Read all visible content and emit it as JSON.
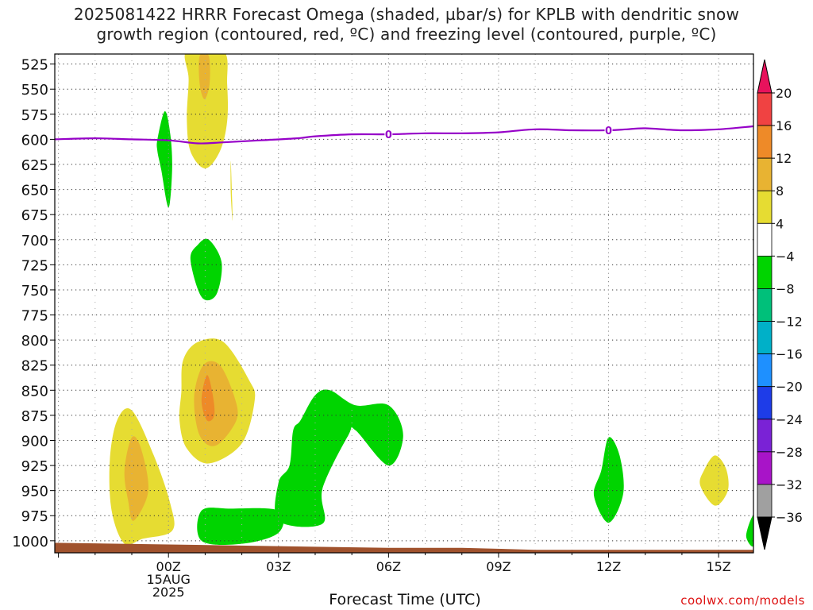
{
  "title_line1": "2025081422 HRRR Forecast Omega (shaded, µbar/s) for KPLB with dendritic snow",
  "title_line2": "growth region (contoured, red, ºC) and freezing level (contoured, purple, ºC)",
  "credit": "coolwx.com/models",
  "chart_data": {
    "type": "contour",
    "title": "2025081422 HRRR Forecast Omega (shaded, µbar/s) for KPLB with dendritic snow growth region (contoured, red, ºC) and freezing level (contoured, purple, ºC)",
    "xlabel": "Forecast Time (UTC)",
    "ylabel": "",
    "x_range_hours": [
      -3.1,
      15.95
    ],
    "y_range_mb": [
      515,
      1012
    ],
    "y_ticks": [
      525,
      550,
      575,
      600,
      625,
      650,
      675,
      700,
      725,
      750,
      775,
      800,
      825,
      850,
      875,
      900,
      925,
      950,
      975,
      1000
    ],
    "x_ticks": [
      {
        "h": 0,
        "label": "00Z",
        "sub1": "15AUG",
        "sub2": "2025"
      },
      {
        "h": 3,
        "label": "03Z"
      },
      {
        "h": 6,
        "label": "06Z"
      },
      {
        "h": 9,
        "label": "09Z"
      },
      {
        "h": 12,
        "label": "12Z"
      },
      {
        "h": 15,
        "label": "15Z"
      }
    ],
    "grid": true,
    "colorbar": {
      "levels": [
        "20",
        "16",
        "12",
        "8",
        "4",
        "−4",
        "−8",
        "−12",
        "−16",
        "−20",
        "−24",
        "−28",
        "−32",
        "−36"
      ],
      "colors": [
        "#e8125c",
        "#f04242",
        "#ee8a28",
        "#e8b332",
        "#e6dc32",
        "#ffffff",
        "#00d400",
        "#00c07a",
        "#00b0c8",
        "#1e90ff",
        "#1e3ce8",
        "#7a22d6",
        "#a814c8",
        "#a0a0a0",
        "#000000"
      ]
    },
    "freezing_level": {
      "label": "0",
      "color": "#9600c8",
      "points": [
        [
          -3.1,
          600
        ],
        [
          -2.0,
          599
        ],
        [
          -1.0,
          600
        ],
        [
          0.0,
          601
        ],
        [
          0.8,
          604
        ],
        [
          1.5,
          603
        ],
        [
          2.5,
          601
        ],
        [
          3.5,
          599
        ],
        [
          4.0,
          597
        ],
        [
          5.0,
          595
        ],
        [
          6.0,
          595
        ],
        [
          7.0,
          594
        ],
        [
          8.0,
          594
        ],
        [
          9.0,
          593
        ],
        [
          10.0,
          590
        ],
        [
          11.0,
          591
        ],
        [
          12.0,
          591
        ],
        [
          12.5,
          590
        ],
        [
          13.0,
          589
        ],
        [
          14.0,
          591
        ],
        [
          15.0,
          590
        ],
        [
          15.95,
          587
        ]
      ]
    },
    "omega_regions": [
      {
        "level": "4",
        "color": "#e6dc32",
        "points": [
          [
            0.5,
            512
          ],
          [
            0.55,
            540
          ],
          [
            0.5,
            580
          ],
          [
            0.6,
            612
          ],
          [
            1.0,
            629
          ],
          [
            1.4,
            612
          ],
          [
            1.6,
            582
          ],
          [
            1.6,
            545
          ],
          [
            1.5,
            512
          ]
        ]
      },
      {
        "level": "8",
        "color": "#e8b332",
        "points": [
          [
            0.85,
            517
          ],
          [
            0.85,
            545
          ],
          [
            0.98,
            560
          ],
          [
            1.12,
            545
          ],
          [
            1.1,
            517
          ]
        ]
      },
      {
        "level": "4",
        "color": "#e6dc32",
        "points": [
          [
            1.7,
            622
          ],
          [
            1.7,
            655
          ],
          [
            1.75,
            680
          ]
        ]
      },
      {
        "level": "-4",
        "color": "#00d400",
        "points": [
          [
            -0.3,
            612
          ],
          [
            -0.2,
            630
          ],
          [
            0.0,
            668
          ],
          [
            0.1,
            630
          ],
          [
            0.05,
            595
          ],
          [
            -0.1,
            572
          ],
          [
            -0.3,
            600
          ]
        ]
      },
      {
        "level": "-4",
        "color": "#00d400",
        "points": [
          [
            0.6,
            720
          ],
          [
            0.9,
            757
          ],
          [
            1.3,
            755
          ],
          [
            1.45,
            723
          ],
          [
            1.1,
            700
          ],
          [
            0.8,
            705
          ]
        ]
      },
      {
        "level": "4",
        "color": "#e6dc32",
        "points": [
          [
            0.35,
            852
          ],
          [
            0.3,
            880
          ],
          [
            0.5,
            908
          ],
          [
            1.1,
            923
          ],
          [
            2.0,
            903
          ],
          [
            2.35,
            860
          ],
          [
            2.2,
            840
          ],
          [
            1.5,
            802
          ],
          [
            0.8,
            802
          ],
          [
            0.4,
            820
          ]
        ]
      },
      {
        "level": "8",
        "color": "#e8b332",
        "points": [
          [
            0.7,
            857
          ],
          [
            0.85,
            895
          ],
          [
            1.3,
            905
          ],
          [
            1.85,
            880
          ],
          [
            1.8,
            857
          ],
          [
            1.4,
            825
          ],
          [
            0.95,
            825
          ]
        ]
      },
      {
        "level": "12",
        "color": "#ee8a28",
        "points": [
          [
            0.9,
            860
          ],
          [
            1.05,
            880
          ],
          [
            1.25,
            875
          ],
          [
            1.2,
            853
          ],
          [
            1.05,
            835
          ]
        ]
      },
      {
        "level": "4",
        "color": "#e6dc32",
        "points": [
          [
            -1.6,
            920
          ],
          [
            -1.55,
            970
          ],
          [
            -1.2,
            1003
          ],
          [
            -0.7,
            998
          ],
          [
            0.1,
            990
          ],
          [
            0.05,
            963
          ],
          [
            -0.4,
            915
          ],
          [
            -1.0,
            870
          ],
          [
            -1.4,
            880
          ]
        ]
      },
      {
        "level": "8",
        "color": "#e8b332",
        "points": [
          [
            -1.2,
            930
          ],
          [
            -1.1,
            960
          ],
          [
            -0.95,
            980
          ],
          [
            -0.55,
            950
          ],
          [
            -0.75,
            908
          ],
          [
            -1.0,
            897
          ]
        ]
      },
      {
        "level": "-4",
        "color": "#00d400",
        "points": [
          [
            0.9,
            970
          ],
          [
            0.9,
            1000
          ],
          [
            2.0,
            1003
          ],
          [
            3.0,
            992
          ],
          [
            3.0,
            970
          ],
          [
            1.7,
            968
          ]
        ]
      },
      {
        "level": "-4",
        "color": "#00d400",
        "points": [
          [
            3.0,
            942
          ],
          [
            3.3,
            925
          ],
          [
            3.4,
            890
          ],
          [
            3.6,
            880
          ],
          [
            4.0,
            855
          ],
          [
            4.4,
            850
          ],
          [
            5.1,
            865
          ],
          [
            6.0,
            865
          ],
          [
            6.4,
            895
          ],
          [
            6.0,
            925
          ],
          [
            5.1,
            890
          ],
          [
            4.9,
            895
          ],
          [
            4.2,
            948
          ],
          [
            4.2,
            983
          ],
          [
            3.0,
            980
          ]
        ]
      },
      {
        "level": "-4",
        "color": "#00d400",
        "points": [
          [
            11.8,
            930
          ],
          [
            11.6,
            955
          ],
          [
            12.0,
            982
          ],
          [
            12.4,
            953
          ],
          [
            12.3,
            915
          ],
          [
            12.0,
            897
          ]
        ]
      },
      {
        "level": "4",
        "color": "#e6dc32",
        "points": [
          [
            14.5,
            945
          ],
          [
            14.9,
            965
          ],
          [
            15.25,
            950
          ],
          [
            15.2,
            928
          ],
          [
            14.9,
            915
          ],
          [
            14.6,
            930
          ]
        ]
      },
      {
        "level": "-4",
        "color": "#00d400",
        "points": [
          [
            15.95,
            975
          ],
          [
            15.75,
            995
          ],
          [
            15.95,
            1005
          ]
        ]
      }
    ],
    "terrain": {
      "color": "#a0522d",
      "top_mb": [
        [
          -3.1,
          1002
        ],
        [
          6.0,
          1007
        ],
        [
          8.0,
          1007
        ],
        [
          10.0,
          1009
        ],
        [
          15.95,
          1009
        ]
      ]
    }
  }
}
